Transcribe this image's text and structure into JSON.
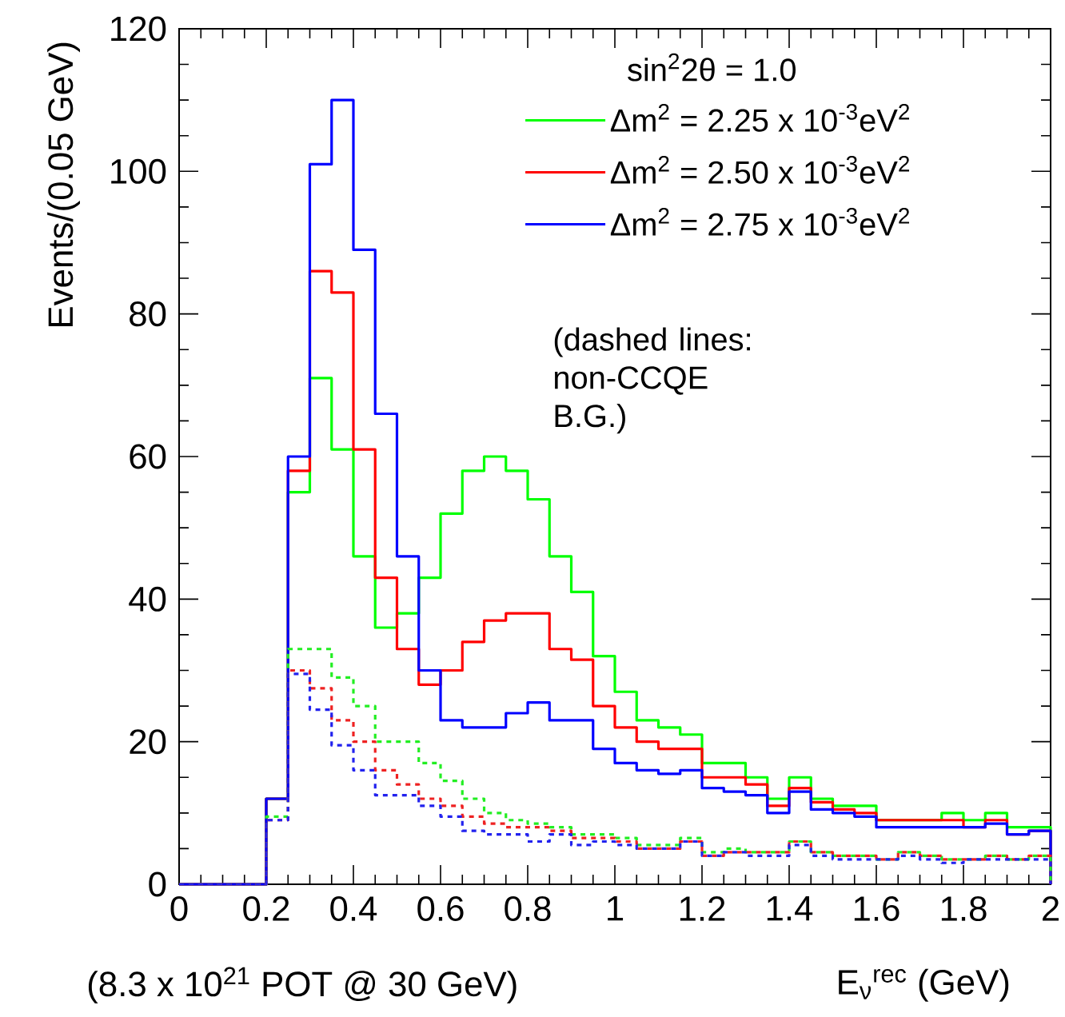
{
  "chart_data": {
    "type": "histogram",
    "ylabel": "Events/(0.05 GeV)",
    "xlabel": "E$_{ν}$$^{rec}$ (GeV)",
    "legend_title": "sin$^{2}$2θ = 1.0",
    "annotations": [
      "(dashed lines: non-CCQE B.G.)",
      "(8.3 x 10$^{21}$ POT @ 30 GeV)"
    ],
    "bins": [
      0,
      0.05,
      0.1,
      0.15,
      0.2,
      0.25,
      0.3,
      0.35,
      0.4,
      0.45,
      0.5,
      0.55,
      0.6,
      0.65,
      0.7,
      0.75,
      0.8,
      0.85,
      0.9,
      0.95,
      1.0,
      1.05,
      1.1,
      1.15,
      1.2,
      1.25,
      1.3,
      1.35,
      1.4,
      1.45,
      1.5,
      1.55,
      1.6,
      1.65,
      1.7,
      1.75,
      1.8,
      1.85,
      1.9,
      1.95,
      2.0
    ],
    "series": [
      {
        "name": "Δm$^{2}$ = 2.25 x 10$^{-3}$eV$^{2}$",
        "color": "#00ff00",
        "line_style": "solid",
        "values": [
          0,
          0,
          0,
          0,
          12,
          55,
          71,
          61,
          46,
          36,
          38,
          43,
          52,
          58,
          60,
          58,
          54,
          46,
          41,
          32,
          27,
          23,
          22,
          21,
          17,
          17,
          15,
          12,
          15,
          12,
          11,
          11,
          9,
          9,
          9,
          10,
          9,
          10,
          8,
          8
        ]
      },
      {
        "name": "Δm$^{2}$ = 2.50 x 10$^{-3}$eV$^{2}$",
        "color": "#ff0000",
        "line_style": "solid",
        "values": [
          0,
          0,
          0,
          0,
          12,
          58,
          86,
          83,
          61,
          43,
          33,
          28,
          30,
          34,
          37,
          38,
          38,
          33,
          31.5,
          25,
          22,
          20,
          19,
          19,
          15,
          15,
          14,
          11,
          13.5,
          11.5,
          10.5,
          10,
          9,
          9,
          9,
          9,
          8,
          9,
          7,
          7.5
        ]
      },
      {
        "name": "Δm$^{2}$ = 2.75 x 10$^{-3}$eV$^{2}$",
        "color": "#0000ff",
        "line_style": "solid",
        "values": [
          0,
          0,
          0,
          0,
          12,
          60,
          101,
          110,
          89,
          66,
          46,
          30,
          23,
          22,
          22,
          24,
          25.5,
          23,
          23,
          19,
          17,
          16,
          15.5,
          16,
          13.5,
          13,
          12.5,
          10,
          13,
          10.5,
          10,
          9.5,
          8,
          8,
          8,
          8,
          8,
          8.5,
          7,
          7.5
        ]
      },
      {
        "color": "#22ee22",
        "line_style": "dashed",
        "values": [
          0,
          0,
          0,
          0,
          9.5,
          33,
          33,
          29,
          25,
          20,
          20,
          17,
          14.5,
          12,
          10,
          9,
          8.5,
          8,
          7,
          7,
          6.5,
          5.5,
          5.5,
          6.5,
          4.5,
          5,
          4.5,
          4.5,
          6,
          4.5,
          4,
          4,
          3.5,
          4.5,
          4,
          3.5,
          3.5,
          4,
          3.5,
          4
        ]
      },
      {
        "color": "#ee2222",
        "line_style": "dashed",
        "values": [
          0,
          0,
          0,
          0,
          9,
          30,
          27.5,
          23,
          20,
          16,
          14,
          12,
          11,
          9.5,
          8.5,
          8,
          8,
          7.5,
          6.5,
          6.5,
          6,
          5,
          5,
          6,
          4,
          4.5,
          4.5,
          4.5,
          6,
          4.5,
          4,
          4,
          3.5,
          4.5,
          4,
          3.5,
          3.5,
          4,
          3.5,
          4
        ]
      },
      {
        "color": "#2222ee",
        "line_style": "dashed",
        "values": [
          0,
          0,
          0,
          0,
          9,
          29.5,
          24.5,
          19.5,
          16,
          12.5,
          12.5,
          11,
          9.5,
          7.5,
          7,
          7,
          6,
          7,
          5.5,
          6,
          5.5,
          5,
          5,
          6,
          4,
          4.5,
          4,
          4,
          5.5,
          4,
          3.5,
          3.5,
          3.5,
          4,
          3.5,
          3,
          3.5,
          3.5,
          3.5,
          3.5
        ]
      }
    ],
    "xlim": [
      0,
      2
    ],
    "ylim": [
      0,
      120
    ],
    "xticks": [
      0,
      0.2,
      0.4,
      0.6,
      0.8,
      1,
      1.2,
      1.4,
      1.6,
      1.8,
      2
    ],
    "yticks": [
      0,
      20,
      40,
      60,
      80,
      100,
      120
    ],
    "grid": false,
    "legend": "top right"
  }
}
